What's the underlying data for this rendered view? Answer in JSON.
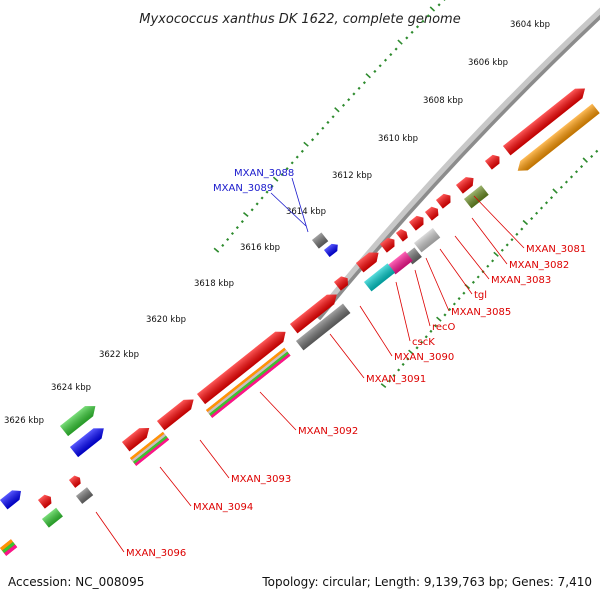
{
  "title": "Myxococcus xanthus DK 1622, complete genome",
  "footer": {
    "accession": "Accession: NC_008095",
    "summary": "Topology: circular; Length: 9,139,763 bp; Genes: 7,410"
  },
  "colors": {
    "backbone": "#8c8c8c",
    "tick": "#2e8b2e",
    "label_red": "#dd0000",
    "label_blue": "#1a1acc",
    "gene_red": "#ff0000",
    "gene_orange": "#ff9900",
    "gene_olive": "#6b8e23",
    "gene_green": "#33cc33",
    "gene_blue": "#0000ff",
    "gene_grey": "#707070",
    "gene_lightgrey": "#c8c8c8",
    "gene_cyan": "#00cccc",
    "gene_magenta": "#ff1493"
  },
  "scale_labels": [
    "3604 kbp",
    "3606 kbp",
    "3608 kbp",
    "3610 kbp",
    "3612 kbp",
    "3614 kbp",
    "3616 kbp",
    "3618 kbp",
    "3620 kbp",
    "3622 kbp",
    "3624 kbp",
    "3626 kbp"
  ],
  "gene_labels": [
    {
      "text": "MXAN_3081",
      "color": "red"
    },
    {
      "text": "MXAN_3082",
      "color": "red"
    },
    {
      "text": "MXAN_3083",
      "color": "red"
    },
    {
      "text": "tgl",
      "color": "red"
    },
    {
      "text": "MXAN_3085",
      "color": "red"
    },
    {
      "text": "recO",
      "color": "red"
    },
    {
      "text": "cscK",
      "color": "red"
    },
    {
      "text": "MXAN_3090",
      "color": "red"
    },
    {
      "text": "MXAN_3091",
      "color": "red"
    },
    {
      "text": "MXAN_3092",
      "color": "red"
    },
    {
      "text": "MXAN_3093",
      "color": "red"
    },
    {
      "text": "MXAN_3094",
      "color": "red"
    },
    {
      "text": "MXAN_3096",
      "color": "red"
    },
    {
      "text": "MXAN_3088",
      "color": "blue"
    },
    {
      "text": "MXAN_3089",
      "color": "blue"
    }
  ]
}
